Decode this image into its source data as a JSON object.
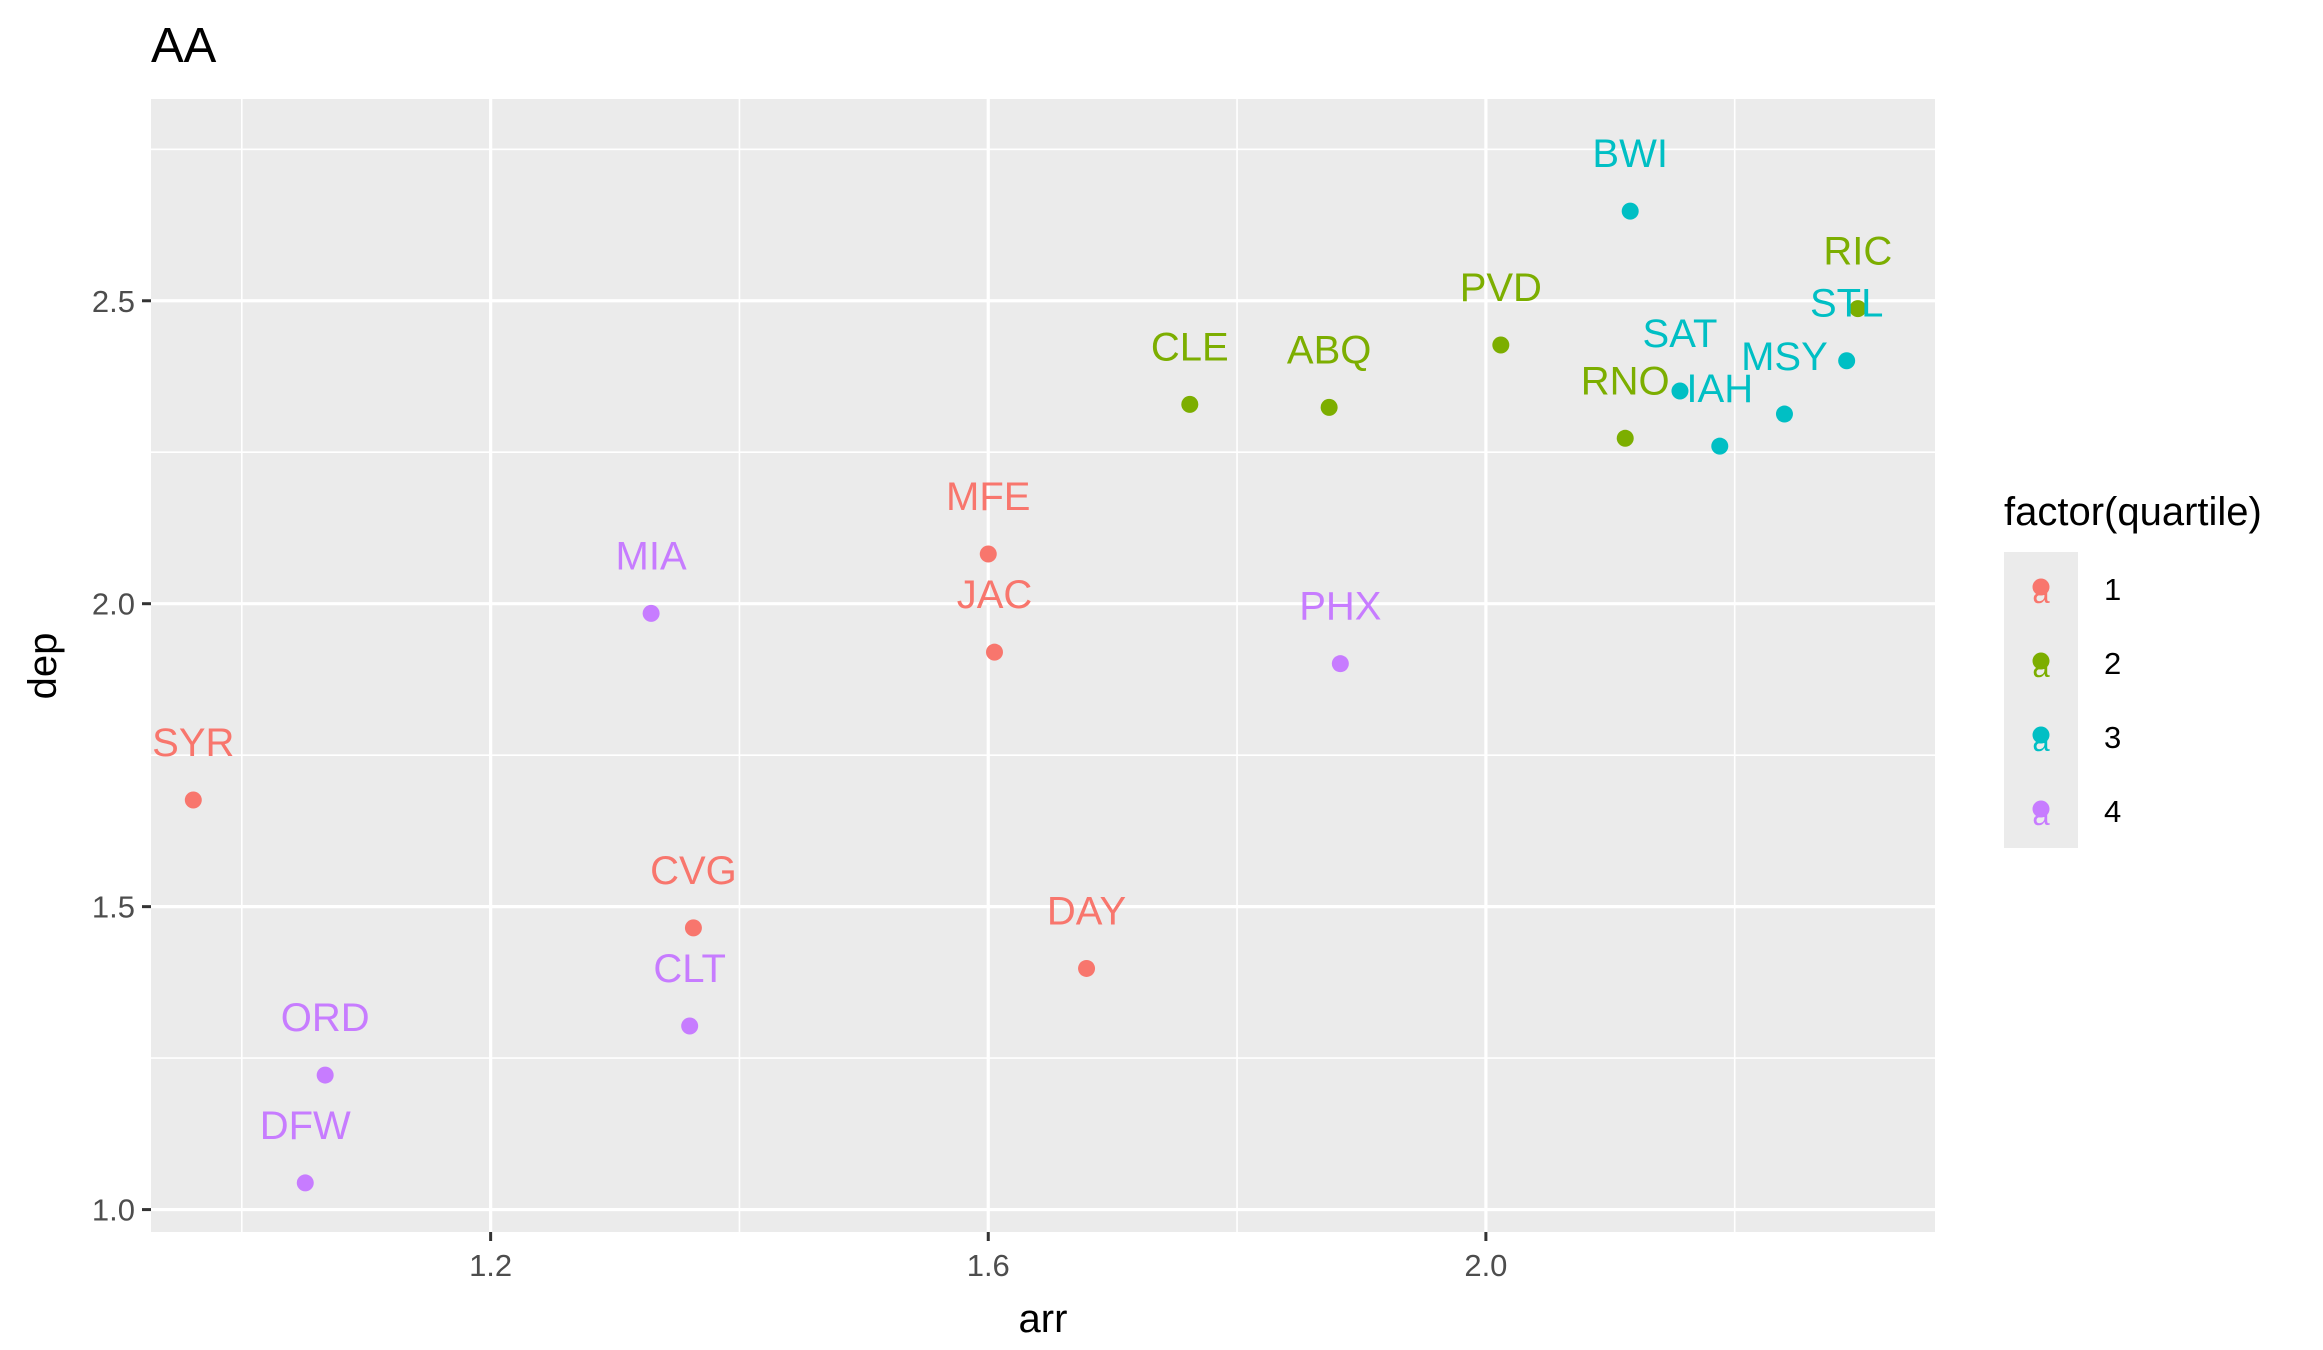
{
  "chart_data": {
    "type": "scatter",
    "title": "AA",
    "xlabel": "arr",
    "ylabel": "dep",
    "xlim": [
      0.927,
      2.361
    ],
    "ylim": [
      0.963,
      2.833
    ],
    "x_ticks": [
      {
        "value": 1.2,
        "label": "1.2"
      },
      {
        "value": 1.6,
        "label": "1.6"
      },
      {
        "value": 2.0,
        "label": "2.0"
      }
    ],
    "y_ticks": [
      {
        "value": 1.0,
        "label": "1.0"
      },
      {
        "value": 1.5,
        "label": "1.5"
      },
      {
        "value": 2.0,
        "label": "2.0"
      },
      {
        "value": 2.5,
        "label": "2.5"
      }
    ],
    "grid": true,
    "legend": {
      "title": "factor(quartile)",
      "placement": "right",
      "entries": [
        {
          "label": "1",
          "color": "#F8766D"
        },
        {
          "label": "2",
          "color": "#7CAE00"
        },
        {
          "label": "3",
          "color": "#00BFC4"
        },
        {
          "label": "4",
          "color": "#C77CFF"
        }
      ]
    },
    "points": [
      {
        "label": "SYR",
        "x": 0.961,
        "y": 1.676,
        "group": "1"
      },
      {
        "label": "CVG",
        "x": 1.363,
        "y": 1.465,
        "group": "1"
      },
      {
        "label": "MFE",
        "x": 1.6,
        "y": 2.082,
        "group": "1"
      },
      {
        "label": "JAC",
        "x": 1.605,
        "y": 1.92,
        "group": "1"
      },
      {
        "label": "DAY",
        "x": 1.679,
        "y": 1.398,
        "group": "1"
      },
      {
        "label": "CLE",
        "x": 1.762,
        "y": 2.329,
        "group": "2"
      },
      {
        "label": "ABQ",
        "x": 1.874,
        "y": 2.324,
        "group": "2"
      },
      {
        "label": "PVD",
        "x": 2.012,
        "y": 2.427,
        "group": "2"
      },
      {
        "label": "RNO",
        "x": 2.112,
        "y": 2.273,
        "group": "2"
      },
      {
        "label": "RIC",
        "x": 2.299,
        "y": 2.487,
        "group": "2"
      },
      {
        "label": "BWI",
        "x": 2.116,
        "y": 2.648,
        "group": "3"
      },
      {
        "label": "SAT",
        "x": 2.156,
        "y": 2.351,
        "group": "3"
      },
      {
        "label": "IAH",
        "x": 2.188,
        "y": 2.26,
        "group": "3"
      },
      {
        "label": "MSY",
        "x": 2.24,
        "y": 2.313,
        "group": "3"
      },
      {
        "label": "STL",
        "x": 2.29,
        "y": 2.401,
        "group": "3"
      },
      {
        "label": "ORD",
        "x": 1.067,
        "y": 1.222,
        "group": "4"
      },
      {
        "label": "DFW",
        "x": 1.051,
        "y": 1.044,
        "group": "4"
      },
      {
        "label": "MIA",
        "x": 1.329,
        "y": 1.984,
        "group": "4"
      },
      {
        "label": "CLT",
        "x": 1.36,
        "y": 1.303,
        "group": "4"
      },
      {
        "label": "PHX",
        "x": 1.883,
        "y": 1.901,
        "group": "4"
      }
    ]
  }
}
